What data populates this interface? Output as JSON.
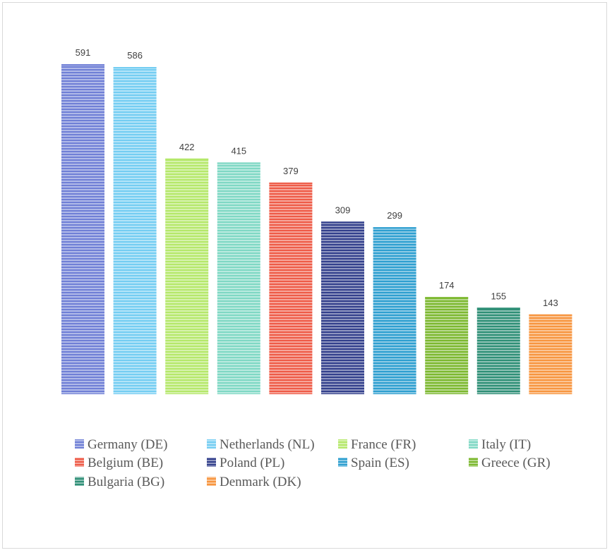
{
  "chart_data": {
    "type": "bar",
    "title": "",
    "xlabel": "",
    "ylabel": "",
    "ylim": [
      0,
      591
    ],
    "grid": false,
    "legend_position": "bottom",
    "categories": [
      "Germany (DE)",
      "Netherlands (NL)",
      "France (FR)",
      "Italy (IT)",
      "Belgium (BE)",
      "Poland (PL)",
      "Spain (ES)",
      "Greece (GR)",
      "Bulgaria (BG)",
      "Denmark (DK)"
    ],
    "values": [
      591,
      586,
      422,
      415,
      379,
      309,
      299,
      174,
      155,
      143
    ],
    "colors": [
      "#6F7FD6",
      "#74CDF2",
      "#B5E86A",
      "#7FD8C4",
      "#EE5B47",
      "#33408C",
      "#2E9FD0",
      "#7CB82F",
      "#2E8F76",
      "#F7953F"
    ],
    "data_labels": [
      "591",
      "586",
      "422",
      "415",
      "379",
      "309",
      "299",
      "174",
      "155",
      "143"
    ]
  }
}
